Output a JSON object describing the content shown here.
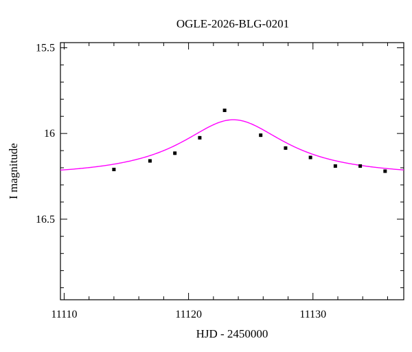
{
  "chart_data": {
    "type": "scatter",
    "title": "OGLE-2026-BLG-0201",
    "xlabel": "HJD - 2450000",
    "ylabel": "I magnitude",
    "xlim": [
      11109.7,
      11137.3
    ],
    "ylim": [
      16.97,
      15.47
    ],
    "y_inverted": true,
    "x_ticks": [
      11110,
      11120,
      11130
    ],
    "x_tick_labels": [
      "11110",
      "11120",
      "11130"
    ],
    "y_ticks": [
      15.5,
      16,
      16.5
    ],
    "y_tick_labels": [
      "15.5",
      "16",
      "16.5"
    ],
    "x_minor_step": 2,
    "y_minor_step": 0.1,
    "grid": false,
    "points": [
      {
        "x": 11114.0,
        "y": 16.21,
        "err": 0.01
      },
      {
        "x": 11116.9,
        "y": 16.16,
        "err": 0.01
      },
      {
        "x": 11118.9,
        "y": 16.115,
        "err": 0.01
      },
      {
        "x": 11120.9,
        "y": 16.025,
        "err": 0.01
      },
      {
        "x": 11122.9,
        "y": 15.865,
        "err": 0.01
      },
      {
        "x": 11125.8,
        "y": 16.01,
        "err": 0.01
      },
      {
        "x": 11127.8,
        "y": 16.085,
        "err": 0.01
      },
      {
        "x": 11129.8,
        "y": 16.14,
        "err": 0.01
      },
      {
        "x": 11131.8,
        "y": 16.19,
        "err": 0.01
      },
      {
        "x": 11133.8,
        "y": 16.19,
        "err": 0.01
      },
      {
        "x": 11135.8,
        "y": 16.22,
        "err": 0.01
      }
    ],
    "model": {
      "name": "",
      "color": "#ff00ff",
      "t0": 11123.6,
      "base_mag": 16.255,
      "peak_mag": 15.92,
      "tE": 5.2
    },
    "marker_color": "#000000"
  }
}
